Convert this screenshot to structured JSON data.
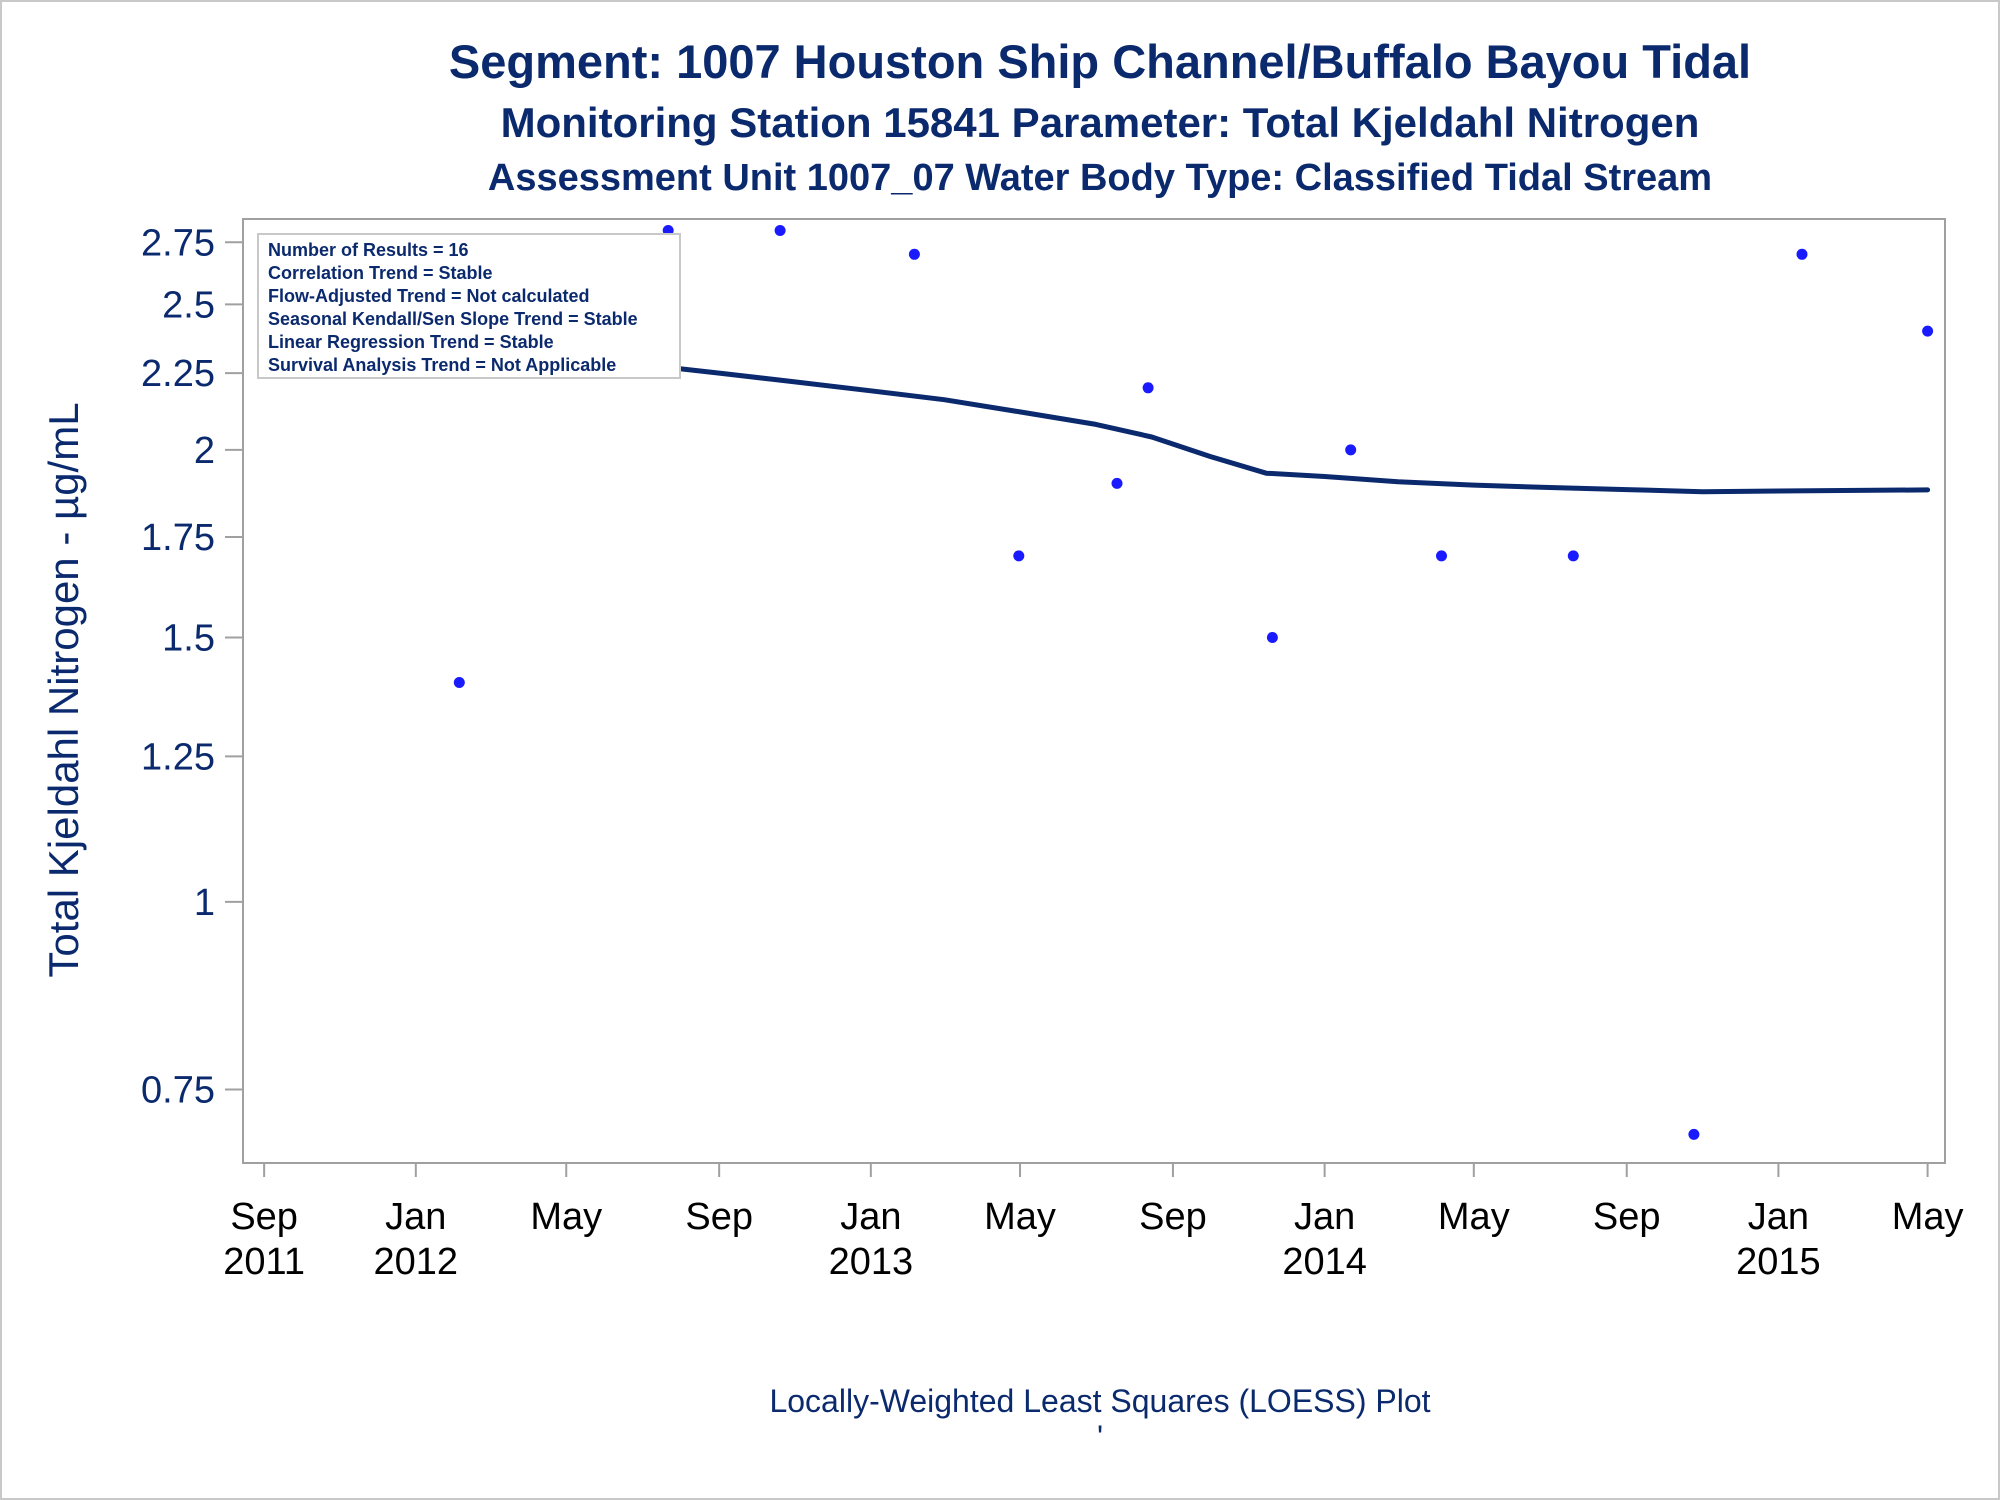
{
  "chart_data": {
    "type": "scatter",
    "title": "Segment: 1007  Houston Ship Channel/Buffalo Bayou Tidal",
    "subtitle": "Monitoring Station 15841 Parameter: Total Kjeldahl Nitrogen",
    "subtitle2": "Assessment Unit 1007_07   Water Body Type: Classified Tidal Stream",
    "ylabel": "Total Kjeldahl Nitrogen -  µg/mL",
    "xlabel": "",
    "footer": "Locally-Weighted Least Squares (LOESS) Plot",
    "footer_mark": "'",
    "y_scale": "log",
    "ylim": [
      0.67,
      2.85
    ],
    "xlim": [
      "2011-08-15",
      "2015-05-15"
    ],
    "y_ticks": [
      {
        "value": 0.75,
        "label": "0.75"
      },
      {
        "value": 1,
        "label": "1"
      },
      {
        "value": 1.25,
        "label": "1.25"
      },
      {
        "value": 1.5,
        "label": "1.5"
      },
      {
        "value": 1.75,
        "label": "1.75"
      },
      {
        "value": 2,
        "label": "2"
      },
      {
        "value": 2.25,
        "label": "2.25"
      },
      {
        "value": 2.5,
        "label": "2.5"
      },
      {
        "value": 2.75,
        "label": "2.75"
      }
    ],
    "x_ticks": [
      {
        "date": "2011-09-01",
        "month": "Sep",
        "year": "2011"
      },
      {
        "date": "2012-01-01",
        "month": "Jan",
        "year": "2012"
      },
      {
        "date": "2012-05-01",
        "month": "May",
        "year": ""
      },
      {
        "date": "2012-09-01",
        "month": "Sep",
        "year": ""
      },
      {
        "date": "2013-01-01",
        "month": "Jan",
        "year": "2013"
      },
      {
        "date": "2013-05-01",
        "month": "May",
        "year": ""
      },
      {
        "date": "2013-09-01",
        "month": "Sep",
        "year": ""
      },
      {
        "date": "2014-01-01",
        "month": "Jan",
        "year": "2014"
      },
      {
        "date": "2014-05-01",
        "month": "May",
        "year": ""
      },
      {
        "date": "2014-09-01",
        "month": "Sep",
        "year": ""
      },
      {
        "date": "2015-01-01",
        "month": "Jan",
        "year": "2015"
      },
      {
        "date": "2015-05-01",
        "month": "May",
        "year": ""
      }
    ],
    "points": [
      {
        "date": "2011-12-15",
        "value": 2.4
      },
      {
        "date": "2012-02-05",
        "value": 1.4
      },
      {
        "date": "2012-04-28",
        "value": 2.4
      },
      {
        "date": "2012-07-22",
        "value": 2.8
      },
      {
        "date": "2012-10-20",
        "value": 2.8
      },
      {
        "date": "2013-02-05",
        "value": 2.7
      },
      {
        "date": "2013-04-30",
        "value": 1.7
      },
      {
        "date": "2013-07-18",
        "value": 1.9
      },
      {
        "date": "2013-08-12",
        "value": 2.2
      },
      {
        "date": "2013-11-20",
        "value": 1.5
      },
      {
        "date": "2014-01-22",
        "value": 2.0
      },
      {
        "date": "2014-04-05",
        "value": 1.7
      },
      {
        "date": "2014-07-20",
        "value": 1.7
      },
      {
        "date": "2014-10-25",
        "value": 0.7
      },
      {
        "date": "2015-01-20",
        "value": 2.7
      },
      {
        "date": "2015-05-01",
        "value": 2.4
      }
    ],
    "loess_line": [
      {
        "date": "2011-12-15",
        "value": 2.36
      },
      {
        "date": "2012-03-01",
        "value": 2.33
      },
      {
        "date": "2012-05-01",
        "value": 2.3
      },
      {
        "date": "2012-07-01",
        "value": 2.28
      },
      {
        "date": "2012-09-01",
        "value": 2.25
      },
      {
        "date": "2012-11-01",
        "value": 2.22
      },
      {
        "date": "2013-01-01",
        "value": 2.19
      },
      {
        "date": "2013-03-01",
        "value": 2.16
      },
      {
        "date": "2013-05-01",
        "value": 2.12
      },
      {
        "date": "2013-07-01",
        "value": 2.08
      },
      {
        "date": "2013-08-15",
        "value": 2.04
      },
      {
        "date": "2013-10-01",
        "value": 1.98
      },
      {
        "date": "2013-11-15",
        "value": 1.93
      },
      {
        "date": "2014-01-01",
        "value": 1.92
      },
      {
        "date": "2014-03-01",
        "value": 1.905
      },
      {
        "date": "2014-05-01",
        "value": 1.895
      },
      {
        "date": "2014-07-01",
        "value": 1.888
      },
      {
        "date": "2014-09-01",
        "value": 1.882
      },
      {
        "date": "2014-11-01",
        "value": 1.876
      },
      {
        "date": "2015-01-01",
        "value": 1.878
      },
      {
        "date": "2015-05-01",
        "value": 1.881
      }
    ],
    "colors": {
      "text": "#0b2a6e",
      "points": "#1a1aff",
      "line": "#0b2a6e",
      "frame": "#a0a0a0"
    },
    "inset_legend": [
      "Number of Results = 16",
      "Correlation Trend = Stable",
      "Flow-Adjusted Trend = Not calculated",
      "Seasonal Kendall/Sen Slope Trend = Stable",
      "Linear Regression Trend = Stable",
      "Survival Analysis Trend = Not Applicable"
    ],
    "inset_placement": "top-left",
    "grid": false
  }
}
